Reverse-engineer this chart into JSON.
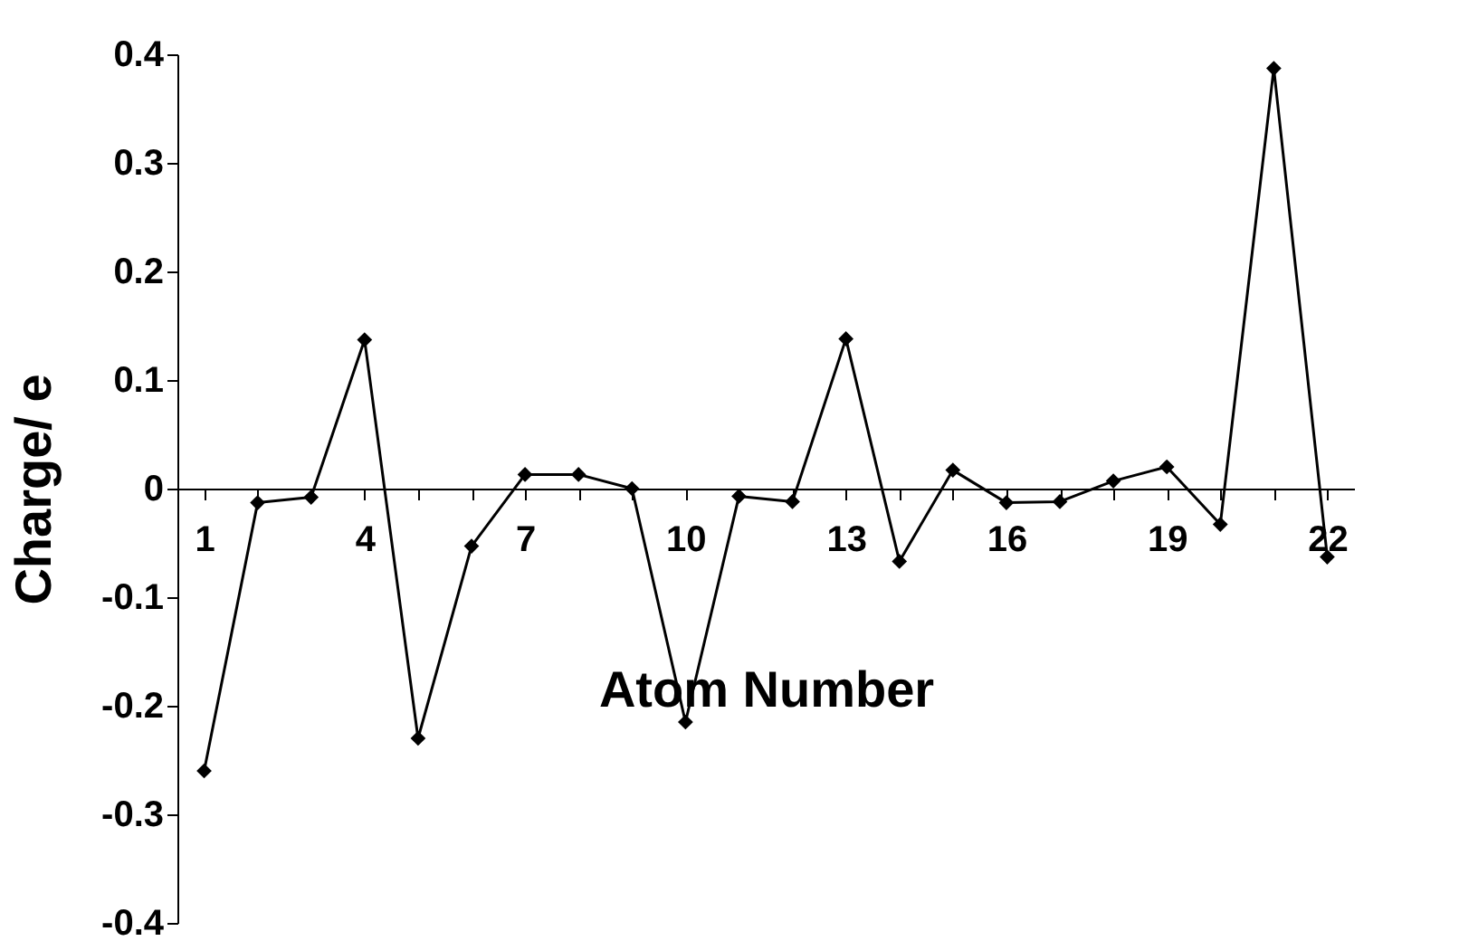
{
  "chart_data": {
    "type": "line",
    "xlabel": "Atom Number",
    "ylabel": "Charge/ e",
    "categories": [
      "1",
      null,
      null,
      "4",
      null,
      null,
      "7",
      null,
      null,
      "10",
      null,
      null,
      "13",
      null,
      null,
      "16",
      null,
      null,
      "19",
      null,
      null,
      "22"
    ],
    "series": [
      {
        "color": "#000000",
        "values": [
          -0.26,
          -0.013,
          -0.008,
          0.137,
          -0.23,
          -0.053,
          0.013,
          0.013,
          0.0,
          -0.215,
          -0.007,
          -0.012,
          0.138,
          -0.067,
          0.017,
          -0.013,
          -0.012,
          0.007,
          0.02,
          -0.033,
          0.387,
          -0.063
        ]
      }
    ],
    "ylim": [
      -0.4,
      0.4
    ],
    "yticks": [
      -0.4,
      -0.3,
      -0.2,
      -0.1,
      0,
      0.1,
      0.2,
      0.3,
      0.4
    ],
    "grid": false,
    "marker": "diamond",
    "line_style": "solid"
  }
}
